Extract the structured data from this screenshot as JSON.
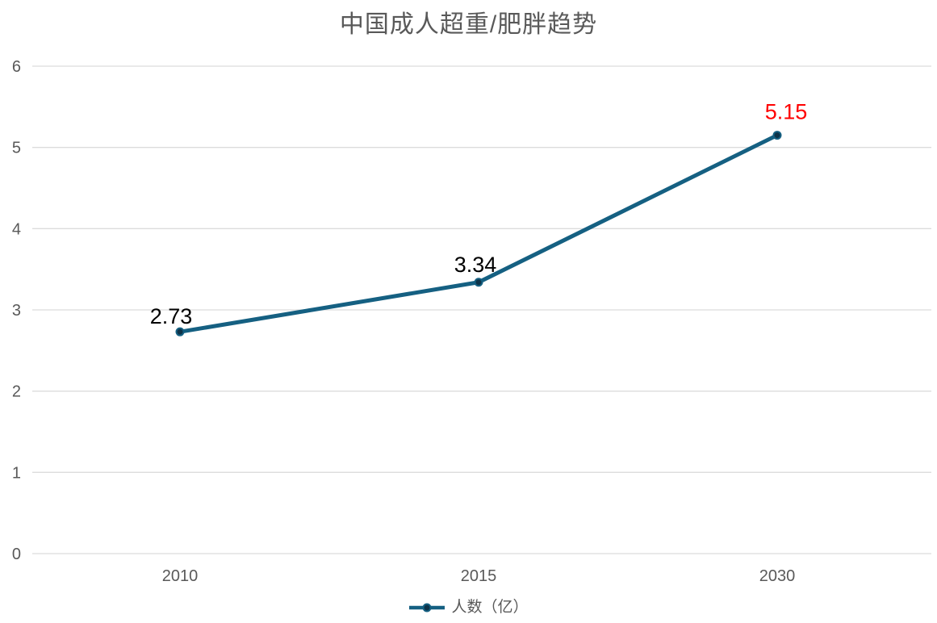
{
  "chart_data": {
    "type": "line",
    "title": "中国成人超重/肥胖趋势",
    "categories": [
      "2010",
      "2015",
      "2030"
    ],
    "series": [
      {
        "name": "人数（亿）",
        "values": [
          2.73,
          3.34,
          5.15
        ],
        "data_labels": [
          "2.73",
          "3.34",
          "5.15"
        ],
        "data_label_colors": [
          "#000000",
          "#000000",
          "#ff0000"
        ],
        "color": "#156082",
        "marker_fill": "#0d3349"
      }
    ],
    "xlabel": "",
    "ylabel": "",
    "ylim": [
      0,
      6
    ],
    "yticks": [
      "0",
      "1",
      "2",
      "3",
      "4",
      "5",
      "6"
    ],
    "grid": "horizontal",
    "gridline_color": "#dcdcdc",
    "axis_label_color": "#595959",
    "title_color": "#595959",
    "legend_position": "bottom"
  }
}
